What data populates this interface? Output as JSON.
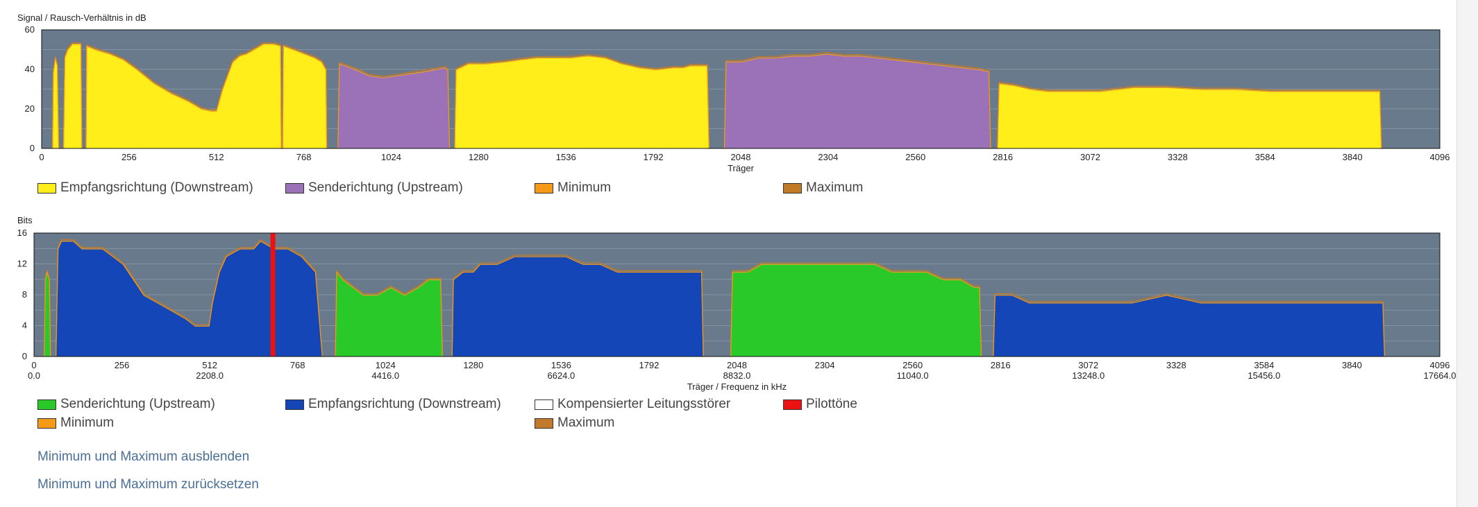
{
  "snr_chart": {
    "ylabel": "Signal / Rausch-Verhältnis in dB",
    "xlabel": "Träger",
    "legend": {
      "downstream": "Empfangsrichtung (Downstream)",
      "upstream": "Senderichtung (Upstream)",
      "minimum": "Minimum",
      "maximum": "Maximum"
    }
  },
  "bits_chart": {
    "ylabel": "Bits",
    "xlabel": "Träger / Frequenz in kHz",
    "legend": {
      "upstream": "Senderichtung (Upstream)",
      "downstream": "Empfangsrichtung (Downstream)",
      "compensated": "Kompensierter Leitungsstörer",
      "pilot": "Pilottöne",
      "minimum": "Minimum",
      "maximum": "Maximum"
    }
  },
  "links": {
    "hide_minmax": "Minimum und Maximum ausblenden",
    "reset_minmax": "Minimum und Maximum zurücksetzen"
  },
  "colors": {
    "plot_bg": "#687a8c",
    "grid": "#8494a4",
    "snr_downstream": "#ffee1a",
    "snr_upstream": "#9b72b8",
    "bits_upstream": "#2ac92a",
    "bits_downstream": "#1446b8",
    "compensated": "#ffffff",
    "pilot": "#ee1111",
    "minimum": "#f59a18",
    "maximum": "#c07a28"
  },
  "chart_data": [
    {
      "type": "area",
      "ylabel": "Signal / Rausch-Verhältnis in dB",
      "xlabel": "Träger",
      "xlim": [
        0,
        4096
      ],
      "ylim": [
        0,
        60
      ],
      "grid": true,
      "xticks": [
        0,
        256,
        512,
        768,
        1024,
        1280,
        1536,
        1792,
        2048,
        2304,
        2560,
        2816,
        3072,
        3328,
        3584,
        3840,
        4096
      ],
      "yticks": [
        0,
        20,
        40,
        60
      ],
      "legend_position": "bottom",
      "series": [
        {
          "name": "Empfangsrichtung (Downstream)",
          "direction": "down",
          "segments": [
            [
              [
                32,
                0
              ],
              [
                34,
                38
              ],
              [
                40,
                46
              ],
              [
                46,
                42
              ],
              [
                50,
                0
              ]
            ],
            [
              [
                64,
                0
              ],
              [
                68,
                46
              ],
              [
                76,
                50
              ],
              [
                90,
                53
              ],
              [
                115,
                53
              ],
              [
                118,
                0
              ]
            ],
            [
              [
                130,
                0
              ],
              [
                132,
                52
              ],
              [
                160,
                50
              ],
              [
                200,
                48
              ],
              [
                240,
                45
              ],
              [
                280,
                40
              ],
              [
                330,
                33
              ],
              [
                380,
                28
              ],
              [
                430,
                24
              ],
              [
                470,
                20
              ],
              [
                500,
                19
              ],
              [
                512,
                19
              ],
              [
                530,
                30
              ],
              [
                545,
                37
              ],
              [
                560,
                44
              ],
              [
                580,
                47
              ],
              [
                600,
                48
              ],
              [
                620,
                50
              ],
              [
                650,
                53
              ],
              [
                680,
                53
              ],
              [
                700,
                52
              ],
              [
                702,
                0
              ]
            ],
            [
              [
                706,
                0
              ],
              [
                708,
                52
              ],
              [
                740,
                50
              ],
              [
                770,
                48
              ],
              [
                800,
                46
              ],
              [
                820,
                44
              ],
              [
                833,
                40
              ],
              [
                835,
                0
              ]
            ],
            [
              [
                1210,
                0
              ],
              [
                1214,
                40
              ],
              [
                1250,
                43
              ],
              [
                1300,
                43
              ],
              [
                1360,
                44
              ],
              [
                1400,
                45
              ],
              [
                1450,
                46
              ],
              [
                1500,
                46
              ],
              [
                1550,
                46
              ],
              [
                1600,
                47
              ],
              [
                1650,
                46
              ],
              [
                1700,
                43
              ],
              [
                1750,
                41
              ],
              [
                1800,
                40
              ],
              [
                1850,
                41
              ],
              [
                1880,
                41
              ],
              [
                1900,
                42
              ],
              [
                1950,
                42
              ],
              [
                1955,
                0
              ]
            ],
            [
              [
                2800,
                0
              ],
              [
                2805,
                33
              ],
              [
                2850,
                32
              ],
              [
                2900,
                30
              ],
              [
                2950,
                29
              ],
              [
                3000,
                29
              ],
              [
                3050,
                29
              ],
              [
                3100,
                29
              ],
              [
                3150,
                30
              ],
              [
                3200,
                31
              ],
              [
                3300,
                31
              ],
              [
                3400,
                30
              ],
              [
                3500,
                30
              ],
              [
                3600,
                29
              ],
              [
                3700,
                29
              ],
              [
                3800,
                29
              ],
              [
                3900,
                29
              ],
              [
                3920,
                29
              ],
              [
                3925,
                0
              ]
            ]
          ]
        },
        {
          "name": "Senderichtung (Upstream)",
          "direction": "up",
          "segments": [
            [
              [
                868,
                0
              ],
              [
                872,
                43
              ],
              [
                890,
                42
              ],
              [
                920,
                40
              ],
              [
                960,
                37
              ],
              [
                1000,
                36
              ],
              [
                1040,
                37
              ],
              [
                1080,
                38
              ],
              [
                1120,
                39
              ],
              [
                1150,
                40
              ],
              [
                1180,
                41
              ],
              [
                1190,
                40
              ],
              [
                1195,
                0
              ]
            ],
            [
              [
                2000,
                0
              ],
              [
                2005,
                44
              ],
              [
                2050,
                44
              ],
              [
                2100,
                46
              ],
              [
                2150,
                46
              ],
              [
                2200,
                47
              ],
              [
                2250,
                47
              ],
              [
                2300,
                48
              ],
              [
                2350,
                47
              ],
              [
                2400,
                47
              ],
              [
                2450,
                46
              ],
              [
                2500,
                45
              ],
              [
                2550,
                44
              ],
              [
                2600,
                43
              ],
              [
                2650,
                42
              ],
              [
                2700,
                41
              ],
              [
                2750,
                40
              ],
              [
                2775,
                39
              ],
              [
                2780,
                0
              ]
            ]
          ]
        }
      ]
    },
    {
      "type": "area",
      "ylabel": "Bits",
      "xlabel": "Träger / Frequenz in kHz",
      "xlim": [
        0,
        4096
      ],
      "ylim": [
        0,
        16
      ],
      "grid": true,
      "xticks": [
        0,
        256,
        512,
        768,
        1024,
        1280,
        1536,
        1792,
        2048,
        2304,
        2560,
        2816,
        3072,
        3328,
        3584,
        3840,
        4096
      ],
      "xticks_khz": [
        "0.0",
        "2208.0",
        "4416.0",
        "6624.0",
        "8832.0",
        "11040.0",
        "13248.0",
        "15456.0",
        "17664.0"
      ],
      "yticks": [
        0,
        4,
        8,
        12,
        16
      ],
      "pilot_tone_carrier": 696,
      "legend_position": "bottom",
      "series": [
        {
          "name": "Senderichtung (Upstream)",
          "direction": "up",
          "segments": [
            [
              [
                30,
                0
              ],
              [
                33,
                10
              ],
              [
                38,
                11
              ],
              [
                45,
                10
              ],
              [
                48,
                0
              ]
            ],
            [
              [
                878,
                0
              ],
              [
                882,
                11
              ],
              [
                900,
                10
              ],
              [
                930,
                9
              ],
              [
                960,
                8
              ],
              [
                1000,
                8
              ],
              [
                1040,
                9
              ],
              [
                1080,
                8
              ],
              [
                1120,
                9
              ],
              [
                1150,
                10
              ],
              [
                1185,
                10
              ],
              [
                1190,
                0
              ]
            ],
            [
              [
                2030,
                0
              ],
              [
                2035,
                11
              ],
              [
                2080,
                11
              ],
              [
                2120,
                12
              ],
              [
                2200,
                12
              ],
              [
                2300,
                12
              ],
              [
                2400,
                12
              ],
              [
                2450,
                12
              ],
              [
                2500,
                11
              ],
              [
                2550,
                11
              ],
              [
                2600,
                11
              ],
              [
                2650,
                10
              ],
              [
                2700,
                10
              ],
              [
                2740,
                9
              ],
              [
                2755,
                9
              ],
              [
                2760,
                0
              ]
            ]
          ]
        },
        {
          "name": "Empfangsrichtung (Downstream)",
          "direction": "down",
          "segments": [
            [
              [
                64,
                0
              ],
              [
                70,
                14
              ],
              [
                80,
                15
              ],
              [
                115,
                15
              ],
              [
                140,
                14
              ],
              [
                200,
                14
              ],
              [
                230,
                13
              ],
              [
                260,
                12
              ],
              [
                290,
                10
              ],
              [
                320,
                8
              ],
              [
                360,
                7
              ],
              [
                400,
                6
              ],
              [
                440,
                5
              ],
              [
                470,
                4
              ],
              [
                500,
                4
              ],
              [
                510,
                4
              ],
              [
                520,
                7
              ],
              [
                540,
                11
              ],
              [
                560,
                13
              ],
              [
                600,
                14
              ],
              [
                640,
                14
              ],
              [
                660,
                15
              ],
              [
                700,
                14
              ],
              [
                740,
                14
              ],
              [
                780,
                13
              ],
              [
                820,
                11
              ],
              [
                840,
                0
              ]
            ],
            [
              [
                1218,
                0
              ],
              [
                1222,
                10
              ],
              [
                1250,
                11
              ],
              [
                1280,
                11
              ],
              [
                1300,
                12
              ],
              [
                1350,
                12
              ],
              [
                1400,
                13
              ],
              [
                1450,
                13
              ],
              [
                1500,
                13
              ],
              [
                1550,
                13
              ],
              [
                1600,
                12
              ],
              [
                1650,
                12
              ],
              [
                1700,
                11
              ],
              [
                1750,
                11
              ],
              [
                1800,
                11
              ],
              [
                1850,
                11
              ],
              [
                1900,
                11
              ],
              [
                1945,
                11
              ],
              [
                1950,
                0
              ]
            ],
            [
              [
                2795,
                0
              ],
              [
                2800,
                8
              ],
              [
                2850,
                8
              ],
              [
                2900,
                7
              ],
              [
                3000,
                7
              ],
              [
                3100,
                7
              ],
              [
                3200,
                7
              ],
              [
                3300,
                8
              ],
              [
                3400,
                7
              ],
              [
                3500,
                7
              ],
              [
                3600,
                7
              ],
              [
                3700,
                7
              ],
              [
                3800,
                7
              ],
              [
                3900,
                7
              ],
              [
                3930,
                7
              ],
              [
                3935,
                0
              ]
            ]
          ]
        }
      ]
    }
  ]
}
